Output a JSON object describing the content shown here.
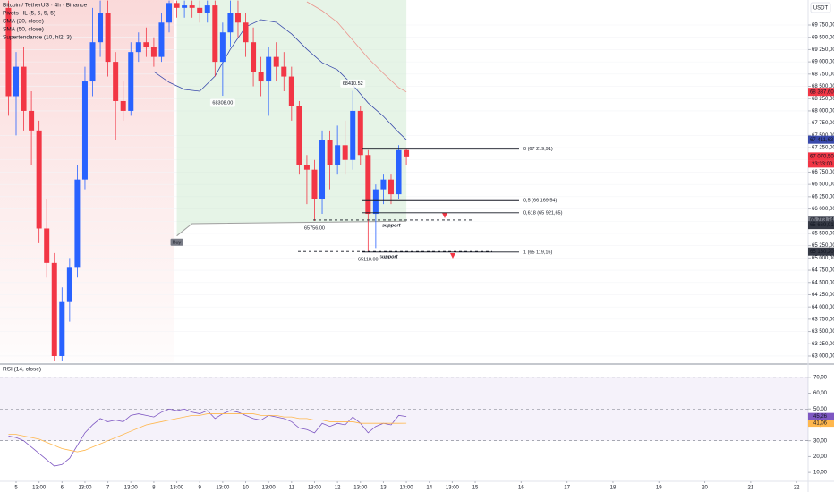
{
  "chart_data": [
    {
      "type": "candlestick",
      "title": "Bitcoin / TetherUS · 4h · Binance",
      "currency": "USDT",
      "x": [
        -4,
        0,
        4,
        8,
        12,
        16,
        20,
        24,
        28,
        32,
        36,
        40,
        44,
        48,
        52,
        56,
        60,
        64,
        68,
        72,
        76,
        80,
        84,
        88,
        92,
        96,
        100,
        104,
        108,
        112,
        116,
        120,
        124,
        128,
        132,
        136,
        140,
        144,
        148,
        152,
        156,
        160,
        164,
        168,
        172,
        176,
        180,
        184,
        188,
        192,
        196,
        200,
        204
      ],
      "open": [
        70100,
        68300,
        68900,
        68000,
        67600,
        65600,
        64900,
        63000,
        64100,
        64800,
        66600,
        68600,
        69400,
        70000,
        69000,
        68200,
        68000,
        69200,
        69400,
        69300,
        69100,
        69800,
        70200,
        70100,
        70150,
        70100,
        70000,
        70150,
        69000,
        69600,
        70000,
        69800,
        69400,
        68800,
        68600,
        69100,
        68900,
        68700,
        68100,
        66900,
        66800,
        66200,
        67400,
        66900,
        67300,
        67000,
        68000,
        67100,
        65900,
        66400,
        66600,
        66300,
        67200
      ],
      "high": [
        70250,
        69200,
        69300,
        68400,
        67800,
        66200,
        65100,
        64400,
        65000,
        66900,
        68900,
        70100,
        70250,
        70250,
        69200,
        68600,
        69400,
        69600,
        69700,
        69500,
        70000,
        70250,
        70250,
        70250,
        70250,
        70250,
        70250,
        70250,
        69800,
        70250,
        70250,
        70000,
        69700,
        69100,
        69300,
        69400,
        69200,
        68900,
        68200,
        67100,
        67000,
        67600,
        67600,
        67700,
        67800,
        68410.52,
        68100,
        67200,
        66500,
        66700,
        66700,
        67300,
        67220
      ],
      "low": [
        67900,
        67500,
        67600,
        66900,
        65300,
        64600,
        62900,
        62900,
        63700,
        64600,
        66400,
        68300,
        69100,
        68700,
        67400,
        67800,
        67900,
        69000,
        69100,
        68900,
        69000,
        69600,
        69900,
        69900,
        69900,
        69800,
        69800,
        68700,
        68308,
        69300,
        69500,
        69100,
        68500,
        68300,
        67900,
        68600,
        68400,
        67800,
        66700,
        66100,
        65756,
        65900,
        66400,
        66700,
        66700,
        66800,
        66900,
        65118,
        65200,
        66100,
        66100,
        66200,
        66900
      ],
      "close": [
        68300,
        68900,
        68000,
        67600,
        65600,
        64900,
        63000,
        64100,
        64800,
        66600,
        68600,
        69400,
        70000,
        69000,
        68200,
        68000,
        69200,
        69400,
        69300,
        69100,
        69800,
        70200,
        70100,
        70150,
        70100,
        70000,
        70150,
        69000,
        69600,
        70000,
        69800,
        69400,
        68800,
        68600,
        69100,
        68900,
        68700,
        68100,
        66900,
        66800,
        66200,
        67400,
        66900,
        67300,
        67000,
        68000,
        67100,
        65900,
        66400,
        66600,
        66300,
        67200,
        67070.5
      ],
      "up_color": "#2962ff",
      "down_color": "#f23645",
      "xlim": [
        -8.42,
        414
      ],
      "ylim": [
        62872,
        70261
      ],
      "grid": true,
      "yticks": [
        {
          "value": 63000,
          "label": "63 000,00"
        },
        {
          "value": 63250,
          "label": "63 250,00"
        },
        {
          "value": 63500,
          "label": "63 500,00"
        },
        {
          "value": 63750,
          "label": "63 750,00"
        },
        {
          "value": 64000,
          "label": "64 000,00"
        },
        {
          "value": 64250,
          "label": "64 250,00"
        },
        {
          "value": 64500,
          "label": "64 500,00"
        },
        {
          "value": 64750,
          "label": "64 750,00"
        },
        {
          "value": 65000,
          "label": "65 000,00"
        },
        {
          "value": 65250,
          "label": "65 250,00"
        },
        {
          "value": 65500,
          "label": "65 500,00"
        },
        {
          "value": 65750,
          "label": "65 750,00"
        },
        {
          "value": 66000,
          "label": "66 000,00"
        },
        {
          "value": 66250,
          "label": "66 250,00"
        },
        {
          "value": 66500,
          "label": "66 500,00"
        },
        {
          "value": 66750,
          "label": "66 750,00"
        },
        {
          "value": 67000,
          "label": "67 000,00"
        },
        {
          "value": 67250,
          "label": "67 250,00"
        },
        {
          "value": 67500,
          "label": "67 500,00"
        },
        {
          "value": 67750,
          "label": "67 750,00"
        },
        {
          "value": 68000,
          "label": "68 000,00"
        },
        {
          "value": 68250,
          "label": "68 250,00"
        },
        {
          "value": 68500,
          "label": "68 500,00"
        },
        {
          "value": 68750,
          "label": "68 750,00"
        },
        {
          "value": 69000,
          "label": "69 000,00"
        },
        {
          "value": 69250,
          "label": "69 250,00"
        },
        {
          "value": 69500,
          "label": "69 500,00"
        },
        {
          "value": 69750,
          "label": "69 750,00"
        }
      ],
      "series": [
        {
          "name": "SMA (20, close)",
          "color": "#3949ab",
          "x": [
            72,
            80,
            88,
            96,
            104,
            112,
            120,
            128,
            136,
            144,
            152,
            160,
            168,
            176,
            184,
            192,
            200,
            204
          ],
          "values": [
            68801,
            68582,
            68436,
            68400,
            68710,
            69257,
            69713,
            69860,
            69805,
            69568,
            69257,
            68983,
            68837,
            68527,
            68162,
            67889,
            67560,
            67411.63
          ]
        },
        {
          "name": "SMA (50, close)",
          "color": "#ef5350",
          "x": [
            152,
            160,
            168,
            176,
            184,
            192,
            200,
            204
          ],
          "values": [
            70225,
            70042,
            69805,
            69440,
            69075,
            68765,
            68473,
            68387.6
          ]
        },
        {
          "name": "Supertendance (10, hl2, 3)",
          "color": "#9e9e9e",
          "x": [
            84,
            92,
            204
          ],
          "values": [
            65450,
            65700,
            65750
          ],
          "signal": "Buy"
        }
      ],
      "pivots": {
        "name": "Pivots HL (5, 5, 5, 5)",
        "points": [
          {
            "x": 108,
            "value": 68308,
            "label": "68308.00",
            "kind": "low"
          },
          {
            "x": 176,
            "value": 68410.52,
            "label": "68410.52",
            "kind": "high"
          },
          {
            "x": 156,
            "value": 65756,
            "label": "65756.00",
            "kind": "low"
          },
          {
            "x": 184,
            "value": 65118,
            "label": "65118.00",
            "kind": "low"
          }
        ]
      },
      "fib_levels": [
        {
          "value": 67219.91,
          "label": "0 (67 219,91)"
        },
        {
          "value": 66169.54,
          "label": "0,5 (66 169,54)"
        },
        {
          "value": 65921.65,
          "label": "0,618 (65 921,65)"
        },
        {
          "value": 65119.16,
          "label": "1 (65 119,16)"
        }
      ],
      "supports": [
        {
          "value": 65773.74,
          "label": "support"
        },
        {
          "value": 65130.2,
          "label": "support"
        }
      ],
      "price_labels": [
        {
          "value": 68387.6,
          "label": "68 387,60",
          "color": "#f23645"
        },
        {
          "value": 67411.63,
          "label": "67 411,63",
          "color": "#3949ab"
        },
        {
          "value": 67070.5,
          "label": "67 070,50",
          "color": "#f23645",
          "countdown": "23:33:00"
        },
        {
          "value": 65773.74,
          "label": "65 773,74",
          "color": "#787b86"
        },
        {
          "value": 65669.91,
          "label": "65 669,91",
          "color": "#363a45"
        },
        {
          "value": 65130.2,
          "label": "65 130,20",
          "color": "#363a45"
        }
      ]
    },
    {
      "type": "line",
      "title": "RSI (14, close)",
      "x": [
        -4,
        0,
        4,
        8,
        12,
        16,
        20,
        24,
        28,
        32,
        36,
        40,
        44,
        48,
        52,
        56,
        60,
        64,
        68,
        72,
        76,
        80,
        84,
        88,
        92,
        96,
        100,
        104,
        108,
        112,
        116,
        120,
        124,
        128,
        132,
        136,
        140,
        144,
        148,
        152,
        156,
        160,
        164,
        168,
        172,
        176,
        180,
        184,
        188,
        192,
        196,
        200,
        204
      ],
      "series": [
        {
          "color": "#7e57c2",
          "values": [
            33,
            32,
            30,
            26,
            22,
            18,
            14,
            15,
            19,
            27,
            35,
            40,
            44,
            42,
            43,
            42,
            46,
            47,
            46,
            45,
            48,
            50,
            49,
            50,
            48,
            47,
            49,
            44,
            47,
            49,
            48,
            46,
            44,
            43,
            46,
            45,
            44,
            42,
            38,
            37,
            35,
            41,
            39,
            41,
            40,
            45,
            41,
            35,
            39,
            41,
            40,
            46,
            45.26
          ],
          "value_label": "45,26"
        },
        {
          "color": "#ffb74d",
          "values": [
            34,
            34,
            33,
            32,
            31,
            29,
            27,
            25,
            24,
            23,
            24,
            26,
            28,
            30,
            32,
            34,
            36,
            38,
            40,
            41,
            42,
            43,
            44,
            45,
            46,
            46,
            47,
            47,
            47,
            47,
            47,
            47,
            47,
            46,
            46,
            46,
            45,
            45,
            44,
            44,
            43,
            43,
            42,
            42,
            42,
            42,
            41,
            41,
            41,
            41,
            41,
            41,
            41.06
          ],
          "value_label": "41,06"
        }
      ],
      "bands": [
        30,
        50,
        70
      ],
      "xlim": [
        -8.42,
        414
      ],
      "ylim": [
        3.3,
        77.8
      ],
      "yticks": [
        {
          "value": 10,
          "label": "10,00"
        },
        {
          "value": 20,
          "label": "20,00"
        },
        {
          "value": 30,
          "label": "30,00"
        },
        {
          "value": 40,
          "label": "40,00"
        },
        {
          "value": 50,
          "label": "50,00"
        },
        {
          "value": 60,
          "label": "60,00"
        },
        {
          "value": 70,
          "label": "70,00"
        }
      ],
      "xticks": [
        {
          "value": 0,
          "label": "5"
        },
        {
          "value": 12,
          "label": "13:00"
        },
        {
          "value": 24,
          "label": "6"
        },
        {
          "value": 36,
          "label": "13:00"
        },
        {
          "value": 48,
          "label": "7"
        },
        {
          "value": 60,
          "label": "13:00"
        },
        {
          "value": 72,
          "label": "8"
        },
        {
          "value": 84,
          "label": "13:00"
        },
        {
          "value": 96,
          "label": "9"
        },
        {
          "value": 108,
          "label": "13:00"
        },
        {
          "value": 120,
          "label": "10"
        },
        {
          "value": 132,
          "label": "13:00"
        },
        {
          "value": 144,
          "label": "11"
        },
        {
          "value": 156,
          "label": "13:00"
        },
        {
          "value": 168,
          "label": "12"
        },
        {
          "value": 180,
          "label": "13:00"
        },
        {
          "value": 192,
          "label": "13"
        },
        {
          "value": 204,
          "label": "13:00"
        },
        {
          "value": 216,
          "label": "14"
        },
        {
          "value": 228,
          "label": "13:00"
        },
        {
          "value": 240,
          "label": "15"
        },
        {
          "value": 264,
          "label": "16"
        },
        {
          "value": 288,
          "label": "17"
        },
        {
          "value": 312,
          "label": "18"
        },
        {
          "value": 336,
          "label": "19"
        },
        {
          "value": 360,
          "label": "20"
        },
        {
          "value": 384,
          "label": "21"
        },
        {
          "value": 408,
          "label": "22"
        }
      ]
    }
  ]
}
